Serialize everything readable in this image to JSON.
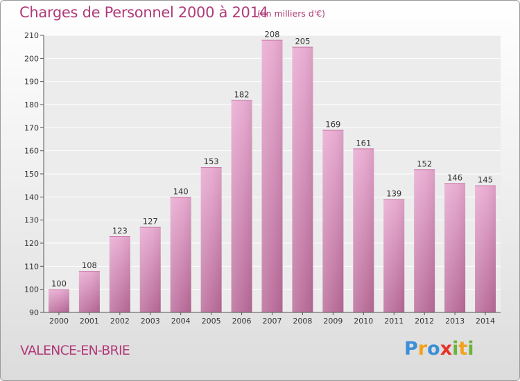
{
  "title": "Charges de Personnel 2000 à 2014",
  "subtitle": "(en milliers d'€)",
  "commune": "VALENCE-EN-BRIE",
  "logo": {
    "letters": [
      "P",
      "r",
      "o",
      "x",
      "i",
      "t",
      "i"
    ],
    "colors": [
      "#3a8fd8",
      "#f2a21a",
      "#3a8fd8",
      "#e8332a",
      "#6cb33e",
      "#f2a21a",
      "#6cb33e"
    ]
  },
  "colors": {
    "bar_top": "#e8a9d0",
    "bar_bottom": "#b86a98",
    "text_accent": "#b03a78",
    "grid": "#ffffff"
  },
  "chart_data": {
    "type": "bar",
    "title": "Charges de Personnel 2000 à 2014",
    "subtitle": "(en milliers d'€)",
    "categories": [
      "2000",
      "2001",
      "2002",
      "2003",
      "2004",
      "2005",
      "2006",
      "2007",
      "2008",
      "2009",
      "2010",
      "2011",
      "2012",
      "2013",
      "2014"
    ],
    "values": [
      100,
      108,
      123,
      127,
      140,
      153,
      182,
      208,
      205,
      169,
      161,
      139,
      152,
      146,
      145
    ],
    "ylim": [
      90,
      210
    ],
    "yticks": [
      90,
      100,
      110,
      120,
      130,
      140,
      150,
      160,
      170,
      180,
      190,
      200,
      210
    ],
    "xlabel": "",
    "ylabel": "",
    "grid": true,
    "data_labels": true
  }
}
